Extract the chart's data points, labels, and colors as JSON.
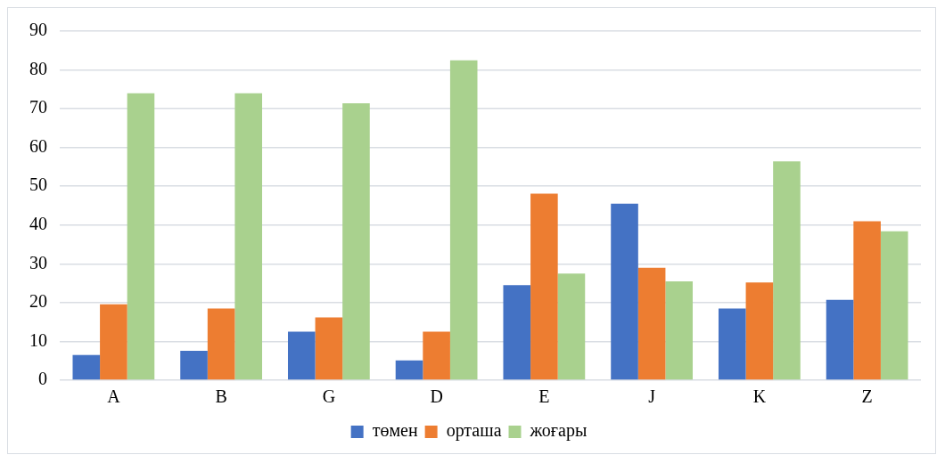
{
  "chart_data": {
    "type": "bar",
    "categories": [
      "A",
      "B",
      "G",
      "D",
      "E",
      "J",
      "K",
      "Z"
    ],
    "series": [
      {
        "name": "төмен",
        "color": "#4472c4",
        "values": [
          6.5,
          7.6,
          12.5,
          5.1,
          24.5,
          45.5,
          18.5,
          20.7
        ]
      },
      {
        "name": "орташа",
        "color": "#ed7d31",
        "values": [
          19.6,
          18.5,
          16.2,
          12.5,
          48.1,
          29.0,
          25.2,
          41.0
        ]
      },
      {
        "name": "жоғары",
        "color": "#a9d18e",
        "values": [
          74.0,
          74.0,
          71.4,
          82.5,
          27.5,
          25.5,
          56.4,
          38.4
        ]
      }
    ],
    "ylim": [
      0,
      90
    ],
    "yticks": [
      0,
      10,
      20,
      30,
      40,
      50,
      60,
      70,
      80,
      90
    ],
    "grid": "y",
    "legend": "bottom"
  }
}
